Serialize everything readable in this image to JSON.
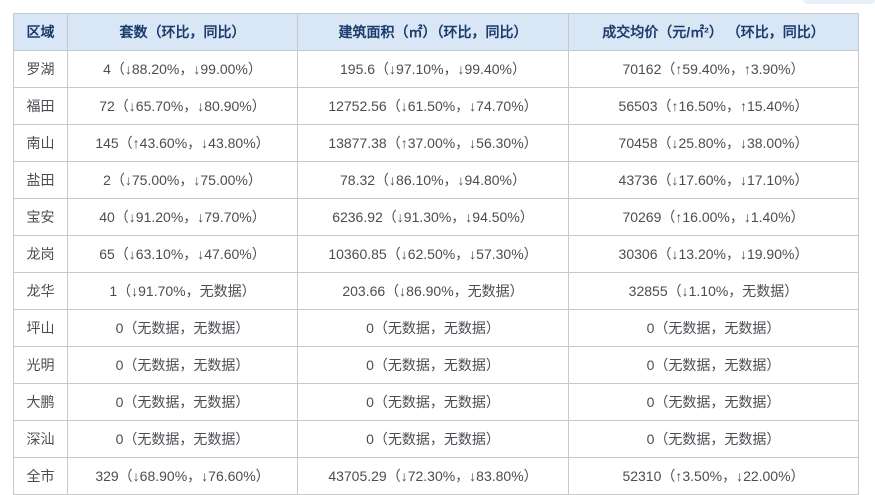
{
  "colors": {
    "header_bg": "#d9e6f5",
    "header_text": "#1b3c6d",
    "body_text": "#4a4d52",
    "border": "#c6c9cc",
    "pill": "#e8f1fa",
    "page_bg": "#ffffff"
  },
  "chart_data": {
    "type": "table",
    "title": "",
    "columns": [
      "区域",
      "套数（环比，同比）",
      "建筑面积（㎡）（环比，同比）",
      "成交均价（元/㎡²） （环比，同比）"
    ],
    "rows": [
      [
        "罗湖",
        "4（↓88.20%，↓99.00%）",
        "195.6（↓97.10%，↓99.40%）",
        "70162（↑59.40%，↑3.90%）"
      ],
      [
        "福田",
        "72（↓65.70%，↓80.90%）",
        "12752.56（↓61.50%，↓74.70%）",
        "56503（↑16.50%，↑15.40%）"
      ],
      [
        "南山",
        "145（↑43.60%，↓43.80%）",
        "13877.38（↑37.00%，↓56.30%）",
        "70458（↓25.80%，↓38.00%）"
      ],
      [
        "盐田",
        "2（↓75.00%，↓75.00%）",
        "78.32（↓86.10%，↓94.80%）",
        "43736（↓17.60%，↓17.10%）"
      ],
      [
        "宝安",
        "40（↓91.20%，↓79.70%）",
        "6236.92（↓91.30%，↓94.50%）",
        "70269（↑16.00%，↓1.40%）"
      ],
      [
        "龙岗",
        "65（↓63.10%，↓47.60%）",
        "10360.85（↓62.50%，↓57.30%）",
        "30306（↓13.20%，↓19.90%）"
      ],
      [
        "龙华",
        "1（↓91.70%，无数据）",
        "203.66（↓86.90%，无数据）",
        "32855（↓1.10%，无数据）"
      ],
      [
        "坪山",
        "0（无数据，无数据）",
        "0（无数据，无数据）",
        "0（无数据，无数据）"
      ],
      [
        "光明",
        "0（无数据，无数据）",
        "0（无数据，无数据）",
        "0（无数据，无数据）"
      ],
      [
        "大鹏",
        "0（无数据，无数据）",
        "0（无数据，无数据）",
        "0（无数据，无数据）"
      ],
      [
        "深汕",
        "0（无数据，无数据）",
        "0（无数据，无数据）",
        "0（无数据，无数据）"
      ],
      [
        "全市",
        "329（↓68.90%，↓76.60%）",
        "43705.29（↓72.30%，↓83.80%）",
        "52310（↑3.50%，↓22.00%）"
      ]
    ]
  }
}
